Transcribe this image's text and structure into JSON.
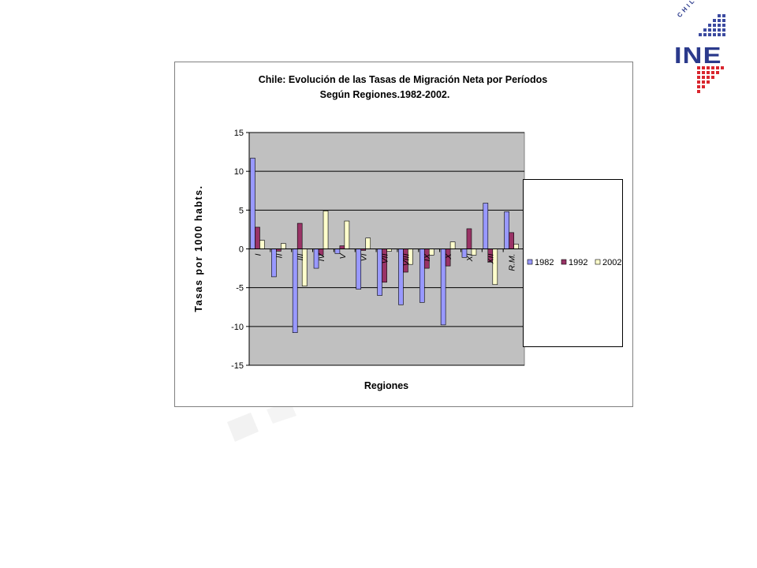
{
  "logo": {
    "text": "INE",
    "country": "CHILE"
  },
  "chart_data": {
    "type": "bar",
    "title": "Chile: Evolución de las Tasas de Migración Neta por Períodos",
    "subtitle": "Según Regiones.1982-2002.",
    "xlabel": "Regiones",
    "ylabel": "Tasas por 1000 habts.",
    "ylim": [
      -15,
      15
    ],
    "yticks": [
      "15",
      "10",
      "5",
      "0",
      "-5",
      "-10",
      "-15"
    ],
    "categories": [
      "I",
      "II",
      "III",
      "IV",
      "V",
      "VI",
      "VII",
      "VIII",
      "IX",
      "X",
      "XI",
      "XII",
      "R.M."
    ],
    "series": [
      {
        "name": "1982",
        "color": "#9999ff",
        "values": [
          11.7,
          -3.6,
          -10.8,
          -2.5,
          -0.6,
          -5.2,
          -6.0,
          -7.2,
          -6.9,
          -9.8,
          -1.1,
          5.9,
          4.8
        ]
      },
      {
        "name": "1992",
        "color": "#993366",
        "values": [
          2.8,
          -0.3,
          3.3,
          -0.8,
          0.4,
          -0.2,
          -4.3,
          -3.0,
          -2.5,
          -2.2,
          2.6,
          -1.7,
          2.1
        ]
      },
      {
        "name": "2002",
        "color": "#ffffcc",
        "values": [
          1.1,
          0.7,
          -4.8,
          4.9,
          3.6,
          1.4,
          -0.3,
          -2.0,
          -0.8,
          0.9,
          -0.8,
          -4.6,
          0.6
        ]
      }
    ],
    "plot_background": "#c0c0c0",
    "grid": true,
    "legend_position": "right"
  }
}
